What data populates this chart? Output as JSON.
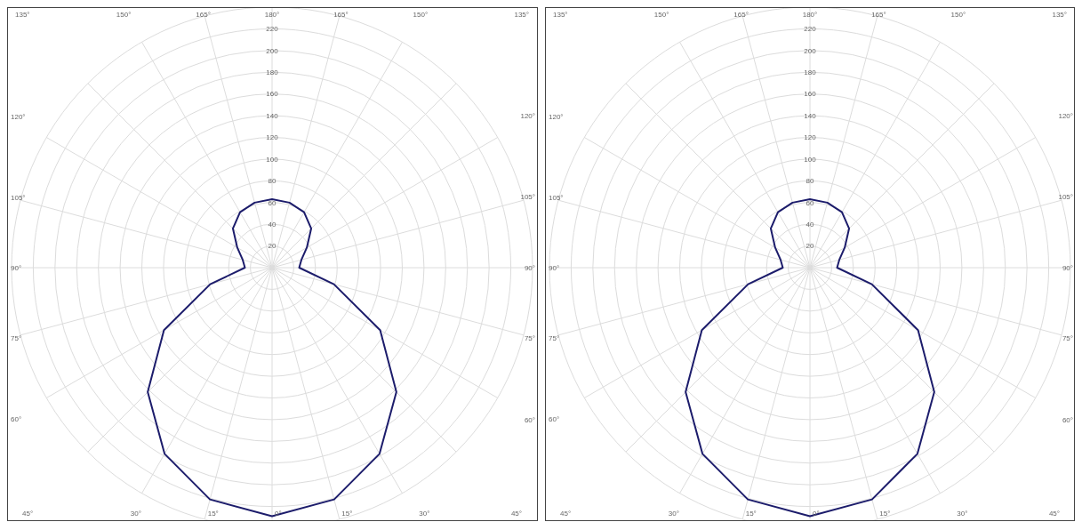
{
  "chart_data": [
    {
      "type": "radar",
      "categories": [
        "180°",
        "165°",
        "150°",
        "135°",
        "120°",
        "105°",
        "90°",
        "75°",
        "60°",
        "45°",
        "30°",
        "15°",
        "0°",
        "15°",
        "30°",
        "45°",
        "60°",
        "75°",
        "90°",
        "105°",
        "120°",
        "135°",
        "150°",
        "165°"
      ],
      "series": [
        {
          "color": "#1c1c6b",
          "values": [
            63,
            62,
            59,
            51,
            37,
            28,
            25,
            59,
            115,
            162,
            198,
            221,
            229,
            221,
            198,
            162,
            115,
            59,
            25,
            28,
            37,
            51,
            59,
            62
          ]
        }
      ],
      "ylim": [
        0,
        240
      ],
      "yticks": [
        20,
        40,
        60,
        80,
        100,
        120,
        140,
        160,
        180,
        200,
        220
      ],
      "grid": true,
      "marker": "none"
    },
    {
      "type": "radar",
      "categories": [
        "180°",
        "165°",
        "150°",
        "135°",
        "120°",
        "105°",
        "90°",
        "75°",
        "60°",
        "45°",
        "30°",
        "15°",
        "0°",
        "15°",
        "30°",
        "45°",
        "60°",
        "75°",
        "90°",
        "105°",
        "120°",
        "135°",
        "150°",
        "165°"
      ],
      "series": [
        {
          "color": "#1c1c6b",
          "values": [
            63,
            62,
            59,
            51,
            37,
            28,
            25,
            59,
            115,
            162,
            198,
            221,
            229,
            221,
            198,
            162,
            115,
            59,
            25,
            28,
            37,
            51,
            59,
            62
          ]
        }
      ],
      "ylim": [
        0,
        240
      ],
      "yticks": [
        20,
        40,
        60,
        80,
        100,
        120,
        140,
        160,
        180,
        200,
        220
      ],
      "grid": true,
      "marker": "none"
    }
  ]
}
